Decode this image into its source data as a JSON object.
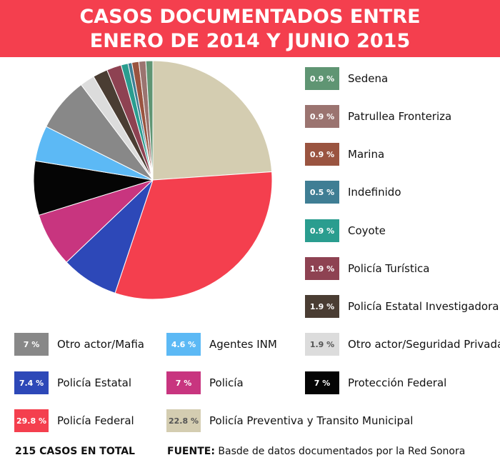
{
  "title": {
    "line1": "CASOS DOCUMENTADOS ENTRE",
    "line2": "ENERO DE 2014 Y JUNIO 2015"
  },
  "colors": {
    "title_bar": "#f43f4e",
    "Policía Preventiva y Transito Municipal": "#d4cdb1",
    "Policía Federal": "#f43f4e",
    "Policía Estatal": "#2d48b8",
    "Policía": "#c8357f",
    "Protección Federal": "#050505",
    "Agentes INM": "#5cb9f5",
    "Otro actor/Mafia": "#888888",
    "Otro actor/Seguridad Privada": "#dcdcdc",
    "Policía Estatal Investigadora": "#4a3d33",
    "Policía Turística": "#8e4252",
    "Coyote": "#2a9d8f",
    "Indefinido": "#3f7e94",
    "Marina": "#9a5440",
    "Patrullea Fronteriza": "#9b7470",
    "Sedena": "#5f9573"
  },
  "chart_data": {
    "type": "pie",
    "title": "CASOS DOCUMENTADOS ENTRE ENERO DE 2014 Y JUNIO 2015",
    "slices": [
      {
        "label": "Policía Preventiva y Transito Municipal",
        "value": 22.8,
        "value_label": "22.8 %"
      },
      {
        "label": "Policía Federal",
        "value": 29.8,
        "value_label": "29.8 %"
      },
      {
        "label": "Policía Estatal",
        "value": 7.4,
        "value_label": "7.4 %"
      },
      {
        "label": "Policía",
        "value": 7,
        "value_label": "7 %"
      },
      {
        "label": "Protección Federal",
        "value": 7,
        "value_label": "7 %"
      },
      {
        "label": "Agentes INM",
        "value": 4.6,
        "value_label": "4.6 %"
      },
      {
        "label": "Otro actor/Mafia",
        "value": 7,
        "value_label": "7 %"
      },
      {
        "label": "Otro actor/Seguridad Privada",
        "value": 1.9,
        "value_label": "1.9 %"
      },
      {
        "label": "Policía Estatal Investigadora",
        "value": 1.9,
        "value_label": "1.9 %"
      },
      {
        "label": "Policía Turística",
        "value": 1.9,
        "value_label": "1.9 %"
      },
      {
        "label": "Coyote",
        "value": 0.9,
        "value_label": "0.9 %"
      },
      {
        "label": "Indefinido",
        "value": 0.5,
        "value_label": "0.5 %"
      },
      {
        "label": "Marina",
        "value": 0.9,
        "value_label": "0.9 %"
      },
      {
        "label": "Patrullea Fronteriza",
        "value": 0.9,
        "value_label": "0.9 %"
      },
      {
        "label": "Sedena",
        "value": 0.9,
        "value_label": "0.9 %"
      }
    ]
  },
  "footer": {
    "total": "215 CASOS EN TOTAL",
    "source_label": "FUENTE:",
    "source_text": " Basde de datos documentados por la Red Sonora"
  }
}
